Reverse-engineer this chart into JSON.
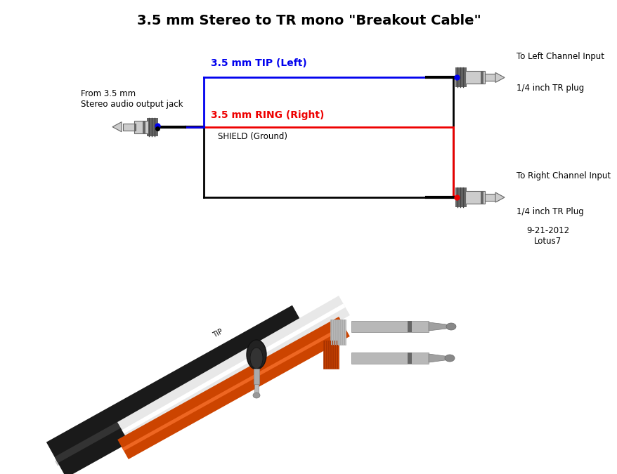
{
  "title": "3.5 mm Stereo to TR mono \"Breakout Cable\"",
  "title_fontsize": 14,
  "title_weight": "bold",
  "bg_color": "#ffffff",
  "left_plug_label": "From 3.5 mm\nStereo audio output jack",
  "tip_label": "3.5 mm TIP (Left)",
  "tip_label_color": "#0000ee",
  "ring_label": "3.5 mm RING (Right)",
  "ring_label_color": "#ee0000",
  "shield_label": "SHIELD (Ground)",
  "right_top_label1": "To Left Channel Input",
  "right_top_label2": "1/4 inch TR plug",
  "right_bot_label1": "To Right Channel Input",
  "right_bot_label2": "1/4 inch TR Plug",
  "date_label": "9-21-2012\nLotus7",
  "blue_color": "#0000ee",
  "red_color": "#ee0000",
  "black_color": "#000000",
  "gray_dark": "#666666",
  "gray_mid": "#999999",
  "gray_light": "#cccccc",
  "lw": 2.0
}
